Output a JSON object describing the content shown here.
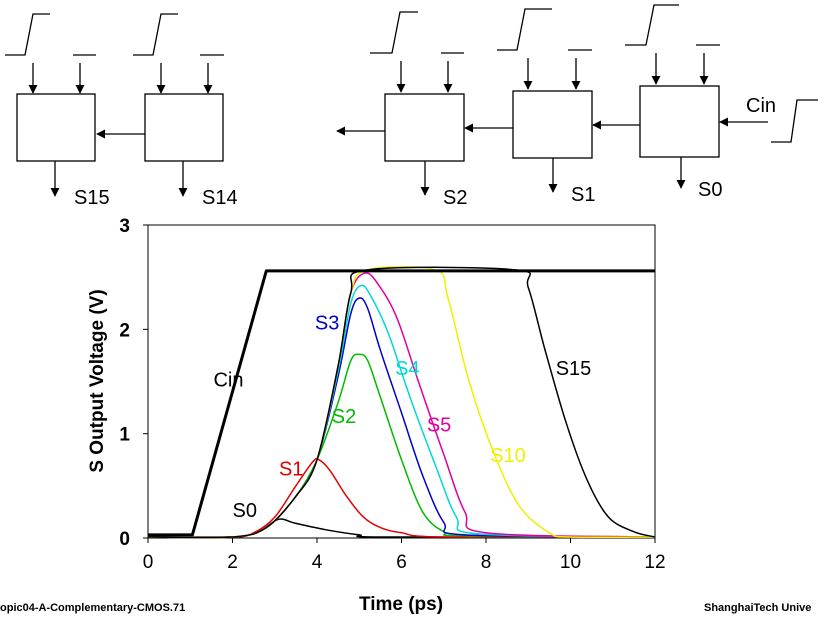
{
  "diagram": {
    "left_blocks": [
      {
        "output": "S15"
      },
      {
        "output": "S14"
      }
    ],
    "right_blocks": [
      {
        "output": "S2"
      },
      {
        "output": "S1"
      },
      {
        "output": "S0"
      }
    ],
    "carry_in_label": "Cin"
  },
  "chart_data": {
    "type": "line",
    "xlabel": "Time (ps)",
    "ylabel": "S Output Voltage (V)",
    "xlim": [
      0,
      12
    ],
    "ylim": [
      0,
      3
    ],
    "x_ticks": [
      "0",
      "2",
      "4",
      "6",
      "8",
      "10",
      "12"
    ],
    "y_ticks": [
      "0",
      "1",
      "2",
      "3"
    ],
    "grid": false,
    "series": [
      {
        "name": "Cin",
        "color": "#000000",
        "width": 3,
        "points": [
          [
            0,
            0.03
          ],
          [
            1.05,
            0.03
          ],
          [
            2.8,
            2.56
          ],
          [
            12,
            2.56
          ]
        ],
        "label_at": [
          1.55,
          1.45
        ]
      },
      {
        "name": "S0",
        "color": "#000000",
        "width": 1.5,
        "points": [
          [
            0,
            0.01
          ],
          [
            1.8,
            0.01
          ],
          [
            2.3,
            0.02
          ],
          [
            2.7,
            0.08
          ],
          [
            3.1,
            0.18
          ],
          [
            3.5,
            0.14
          ],
          [
            4.2,
            0.08
          ],
          [
            5,
            0.03
          ],
          [
            5.6,
            0.01
          ],
          [
            12,
            0.01
          ]
        ],
        "label_at": [
          2.0,
          0.2
        ]
      },
      {
        "name": "S1",
        "color": "#e00000",
        "width": 1.5,
        "points": [
          [
            0,
            0.01
          ],
          [
            2,
            0.01
          ],
          [
            2.5,
            0.05
          ],
          [
            3.0,
            0.2
          ],
          [
            3.5,
            0.5
          ],
          [
            3.9,
            0.73
          ],
          [
            4.05,
            0.75
          ],
          [
            4.3,
            0.65
          ],
          [
            4.7,
            0.4
          ],
          [
            5.1,
            0.2
          ],
          [
            5.5,
            0.1
          ],
          [
            6.0,
            0.05
          ],
          [
            7,
            0.01
          ],
          [
            12,
            0.01
          ]
        ],
        "label_at": [
          3.1,
          0.6
        ]
      },
      {
        "name": "S2",
        "color": "#00bb00",
        "width": 1.5,
        "points": [
          [
            0,
            0.01
          ],
          [
            2,
            0.01
          ],
          [
            2.8,
            0.1
          ],
          [
            3.5,
            0.4
          ],
          [
            4.0,
            0.75
          ],
          [
            4.5,
            1.3
          ],
          [
            4.8,
            1.7
          ],
          [
            5.0,
            1.76
          ],
          [
            5.2,
            1.7
          ],
          [
            5.5,
            1.35
          ],
          [
            6.0,
            0.75
          ],
          [
            6.5,
            0.25
          ],
          [
            7.0,
            0.06
          ],
          [
            7.5,
            0.02
          ],
          [
            12,
            0.01
          ]
        ],
        "label_at": [
          4.35,
          1.1
        ]
      },
      {
        "name": "S3",
        "color": "#0000c8",
        "width": 1.5,
        "points": [
          [
            0,
            0.01
          ],
          [
            2,
            0.01
          ],
          [
            2.8,
            0.1
          ],
          [
            3.5,
            0.4
          ],
          [
            4.0,
            0.75
          ],
          [
            4.5,
            1.55
          ],
          [
            4.8,
            2.15
          ],
          [
            5.0,
            2.3
          ],
          [
            5.2,
            2.2
          ],
          [
            5.5,
            1.8
          ],
          [
            6.0,
            1.2
          ],
          [
            6.5,
            0.6
          ],
          [
            7.0,
            0.15
          ],
          [
            7.5,
            0.03
          ],
          [
            12,
            0.01
          ]
        ],
        "label_at": [
          3.95,
          2.0
        ]
      },
      {
        "name": "S4",
        "color": "#00d8d8",
        "width": 1.5,
        "points": [
          [
            0,
            0.01
          ],
          [
            2,
            0.01
          ],
          [
            2.8,
            0.1
          ],
          [
            3.5,
            0.4
          ],
          [
            4.0,
            0.75
          ],
          [
            4.5,
            1.6
          ],
          [
            4.8,
            2.25
          ],
          [
            5.05,
            2.42
          ],
          [
            5.3,
            2.3
          ],
          [
            5.7,
            1.95
          ],
          [
            6.2,
            1.35
          ],
          [
            6.8,
            0.7
          ],
          [
            7.3,
            0.2
          ],
          [
            7.8,
            0.04
          ],
          [
            12,
            0.01
          ]
        ],
        "label_at": [
          5.85,
          1.56
        ]
      },
      {
        "name": "S5",
        "color": "#e000a0",
        "width": 1.5,
        "points": [
          [
            0,
            0.01
          ],
          [
            2,
            0.01
          ],
          [
            2.8,
            0.1
          ],
          [
            3.5,
            0.4
          ],
          [
            4.0,
            0.75
          ],
          [
            4.5,
            1.65
          ],
          [
            4.8,
            2.35
          ],
          [
            5.15,
            2.54
          ],
          [
            5.5,
            2.4
          ],
          [
            5.9,
            2.1
          ],
          [
            6.4,
            1.5
          ],
          [
            7.0,
            0.8
          ],
          [
            7.5,
            0.25
          ],
          [
            8.0,
            0.05
          ],
          [
            12,
            0.01
          ]
        ],
        "label_at": [
          6.6,
          1.02
        ]
      },
      {
        "name": "S10",
        "color": "#f0f000",
        "width": 1.5,
        "points": [
          [
            0,
            0.01
          ],
          [
            2,
            0.01
          ],
          [
            2.8,
            0.1
          ],
          [
            3.5,
            0.4
          ],
          [
            4.0,
            0.75
          ],
          [
            4.5,
            1.65
          ],
          [
            4.8,
            2.35
          ],
          [
            5.2,
            2.57
          ],
          [
            6.8,
            2.57
          ],
          [
            7.1,
            2.3
          ],
          [
            7.6,
            1.5
          ],
          [
            8.2,
            0.8
          ],
          [
            8.8,
            0.3
          ],
          [
            9.5,
            0.05
          ],
          [
            10,
            0.01
          ],
          [
            12,
            0.01
          ]
        ],
        "label_at": [
          8.1,
          0.73
        ]
      },
      {
        "name": "S15",
        "color": "#000000",
        "width": 1.5,
        "points": [
          [
            0,
            0.01
          ],
          [
            2,
            0.01
          ],
          [
            2.8,
            0.1
          ],
          [
            3.5,
            0.4
          ],
          [
            4.0,
            0.75
          ],
          [
            4.5,
            1.65
          ],
          [
            4.8,
            2.35
          ],
          [
            5.2,
            2.57
          ],
          [
            8.7,
            2.57
          ],
          [
            9.0,
            2.4
          ],
          [
            9.4,
            1.8
          ],
          [
            9.9,
            1.1
          ],
          [
            10.4,
            0.55
          ],
          [
            10.9,
            0.2
          ],
          [
            11.5,
            0.06
          ],
          [
            12,
            0.01
          ]
        ],
        "label_at": [
          9.65,
          1.56
        ]
      }
    ]
  },
  "footer": {
    "left": "opic04-A-Complementary-CMOS.71",
    "right": "ShanghaiTech Unive"
  }
}
